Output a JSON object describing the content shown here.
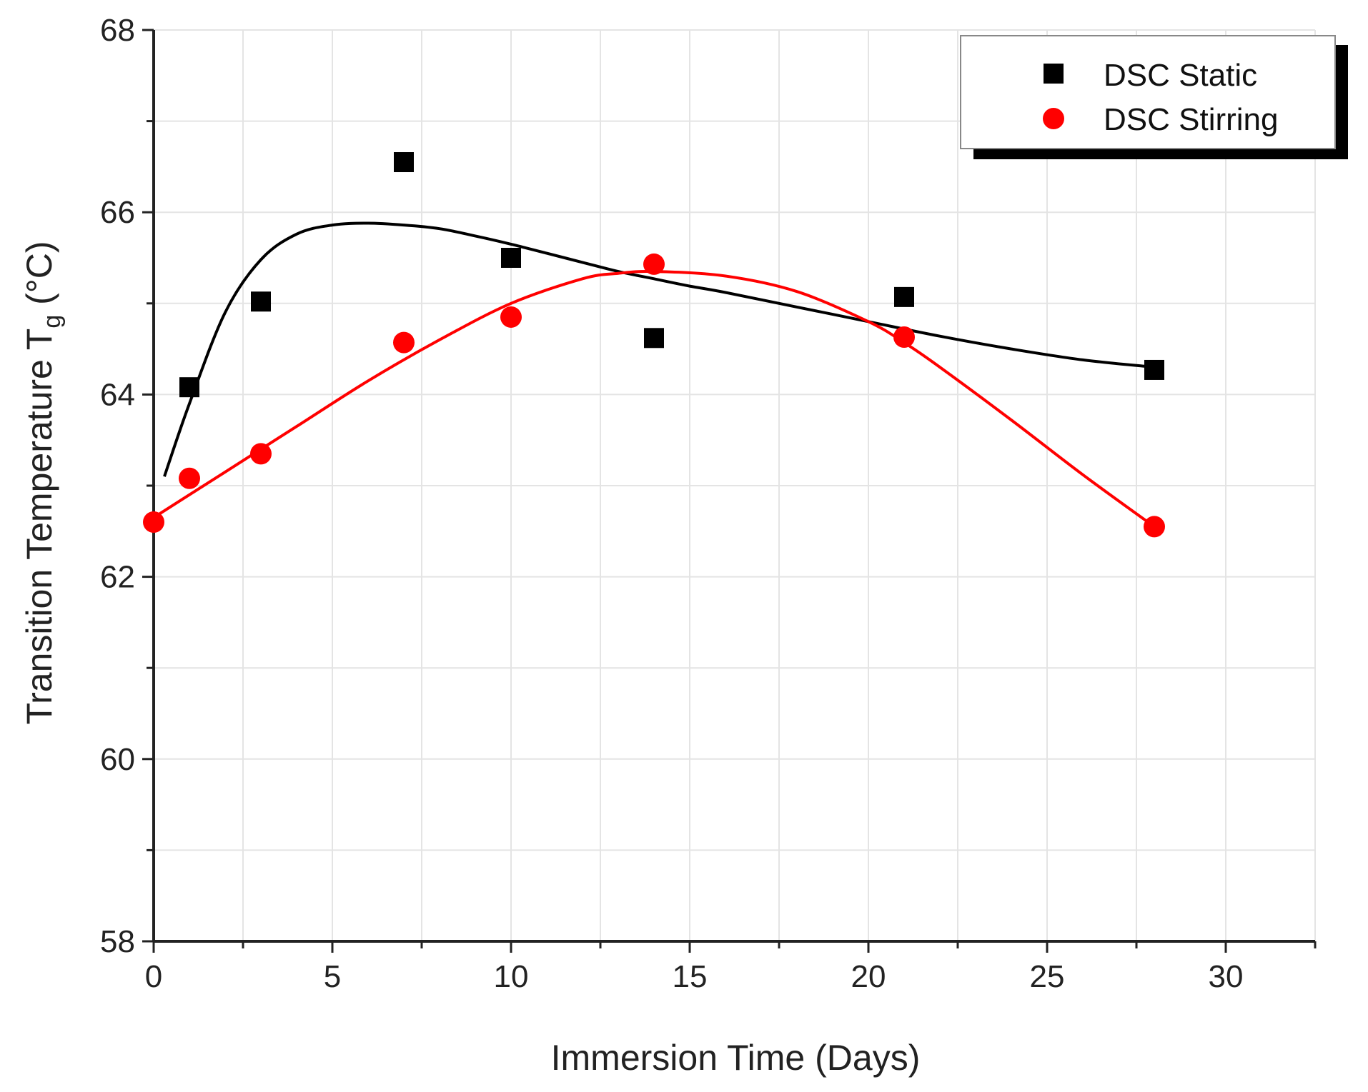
{
  "chart_data": {
    "type": "scatter",
    "xlabel": "Immersion Time (Days)",
    "ylabel": "Transition Temperature T",
    "ylabel_sub": "g",
    "ylabel_unit": " (°C)",
    "xlim": [
      0,
      32.5
    ],
    "ylim": [
      58,
      68
    ],
    "xticks": [
      0,
      5,
      10,
      15,
      20,
      25,
      30
    ],
    "yticks": [
      58,
      60,
      62,
      64,
      66,
      68
    ],
    "grid": true,
    "legend_position": "top-right",
    "series": [
      {
        "name": "DSC Static",
        "marker": "square",
        "color": "#000000",
        "x": [
          1,
          3,
          7,
          10,
          14,
          21,
          28
        ],
        "y": [
          64.08,
          65.02,
          66.55,
          65.5,
          64.62,
          65.07,
          64.27
        ],
        "fit": {
          "x": [
            0.3,
            1,
            2,
            3,
            4,
            5,
            6,
            7,
            8,
            9,
            10,
            11,
            12,
            13,
            14,
            15,
            16,
            18,
            20,
            22,
            24,
            26,
            28
          ],
          "y": [
            63.1,
            63.9,
            64.9,
            65.48,
            65.76,
            65.86,
            65.88,
            65.86,
            65.82,
            65.74,
            65.65,
            65.55,
            65.45,
            65.35,
            65.27,
            65.19,
            65.12,
            64.96,
            64.8,
            64.64,
            64.5,
            64.38,
            64.3
          ]
        }
      },
      {
        "name": "DSC Stirring",
        "marker": "circle",
        "color": "#ff0000",
        "x": [
          0,
          1,
          3,
          7,
          10,
          14,
          21,
          28
        ],
        "y": [
          62.6,
          63.08,
          63.35,
          64.57,
          64.85,
          65.43,
          64.63,
          62.55
        ],
        "fit": {
          "x": [
            0,
            2,
            4,
            6,
            8,
            10,
            12,
            13,
            14,
            16,
            18,
            20,
            21,
            22,
            24,
            26,
            28
          ],
          "y": [
            62.65,
            63.15,
            63.65,
            64.15,
            64.6,
            65.0,
            65.27,
            65.33,
            65.35,
            65.3,
            65.13,
            64.8,
            64.57,
            64.3,
            63.72,
            63.12,
            62.55
          ]
        }
      }
    ]
  }
}
